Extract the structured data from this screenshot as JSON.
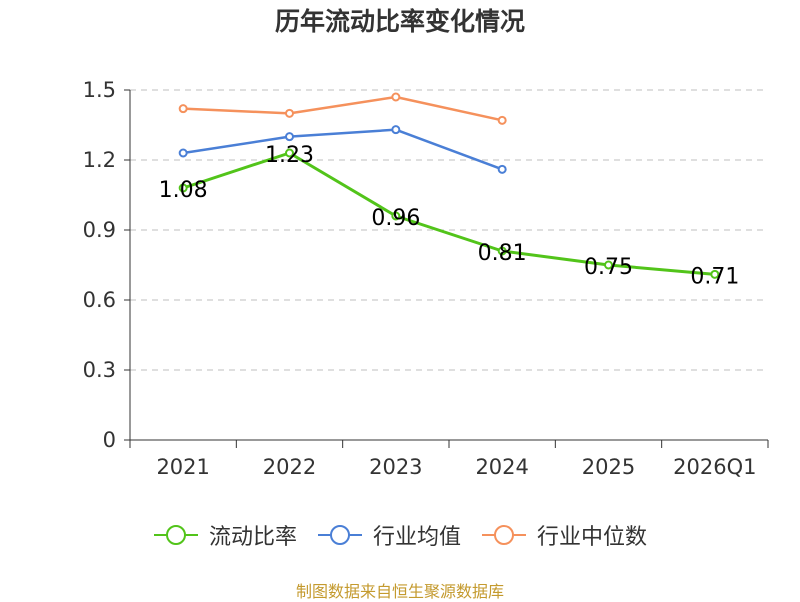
{
  "source_note": "制图数据来自恒生聚源数据库",
  "chart_data": {
    "type": "line",
    "title": "历年流动比率变化情况",
    "xlabel": "",
    "ylabel": "",
    "categories": [
      "2021",
      "2022",
      "2023",
      "2024",
      "2025",
      "2026Q1"
    ],
    "ylim": [
      0,
      1.5
    ],
    "yticks": [
      "0",
      "0.3",
      "0.6",
      "0.9",
      "1.2",
      "1.5"
    ],
    "grid": true,
    "legend_position": "bottom",
    "series": [
      {
        "name": "流动比率",
        "color": "#52c41a",
        "values": [
          1.08,
          1.23,
          0.96,
          0.81,
          0.75,
          0.71
        ],
        "labels": [
          "1.08",
          "1.23",
          "0.96",
          "0.81",
          "0.75",
          "0.71"
        ],
        "show_labels": true
      },
      {
        "name": "行业均值",
        "color": "#4a7fd6",
        "values": [
          1.23,
          1.3,
          1.33,
          1.16,
          null,
          null
        ],
        "show_labels": false
      },
      {
        "name": "行业中位数",
        "color": "#f5915c",
        "values": [
          1.42,
          1.4,
          1.47,
          1.37,
          null,
          null
        ],
        "show_labels": false
      }
    ]
  }
}
